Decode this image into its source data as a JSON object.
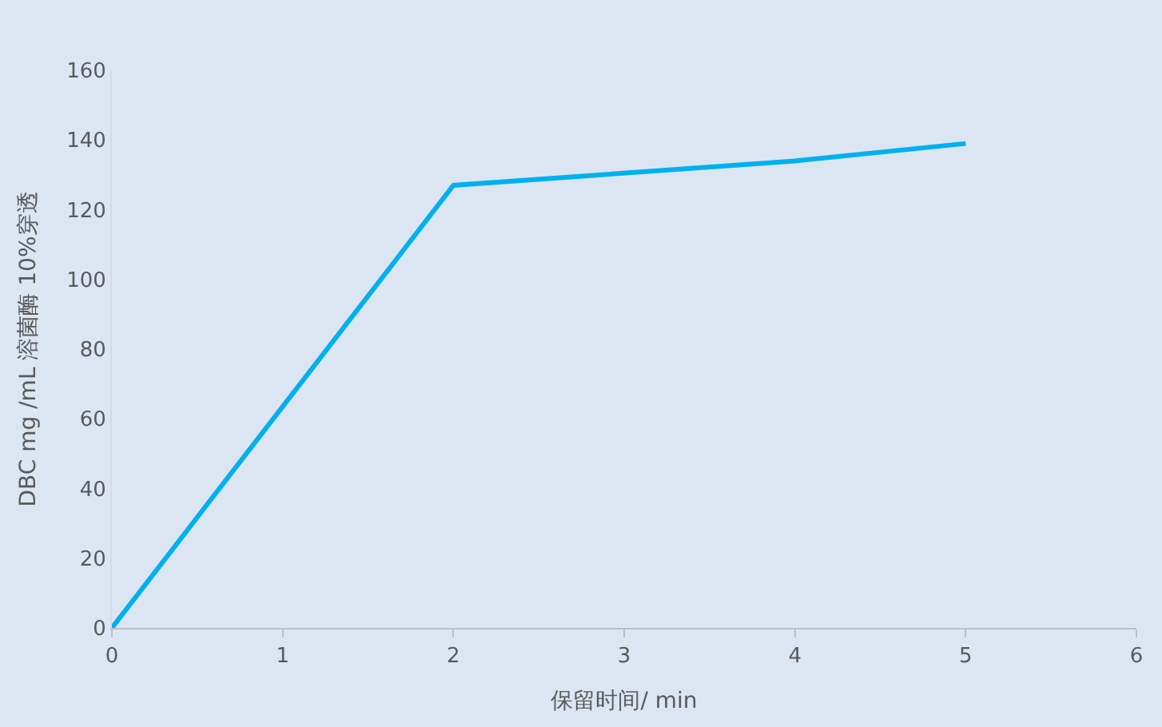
{
  "chart_data": {
    "type": "line",
    "xlabel": "保留时间/ min",
    "ylabel": "DBC mg /mL 溶菌酶 10%穿透",
    "x": [
      0,
      2,
      4,
      5
    ],
    "series": [
      {
        "color": "#00b0f0",
        "values": [
          0,
          127,
          134,
          139
        ]
      }
    ],
    "xlim": [
      0,
      6
    ],
    "xticks": [
      0,
      1,
      2,
      3,
      4,
      5,
      6
    ],
    "ylim": [
      0,
      160
    ],
    "yticks": [
      0,
      20,
      40,
      60,
      80,
      100,
      120,
      140,
      160
    ],
    "grid": false,
    "marker": "none",
    "line_style": "solid"
  }
}
